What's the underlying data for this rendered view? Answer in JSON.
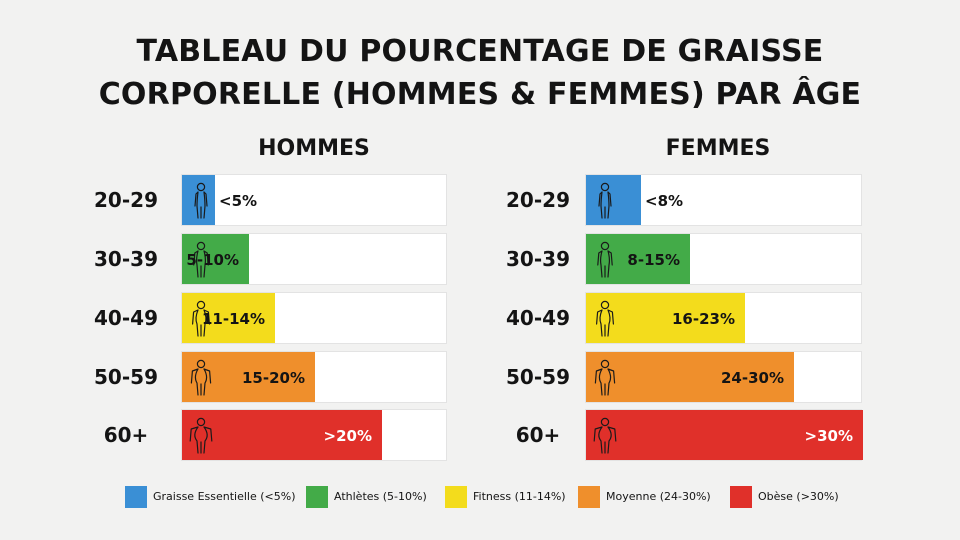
{
  "title_line1": "TABLEAU DU POURCENTAGE DE GRAISSE",
  "title_line2": "CORPORELLE (HOMMES & FEMMES) PAR ÂGE",
  "chart_data": [
    {
      "type": "bar",
      "title": "HOMMES",
      "categories": [
        "20-29",
        "30-39",
        "40-49",
        "50-59",
        "60+"
      ],
      "values": [
        5,
        10,
        14,
        20,
        30
      ],
      "labels": [
        "<5%",
        "5-10%",
        "11-14%",
        "15-20%",
        ">20%"
      ],
      "colors": [
        "#3a8fd5",
        "#43ab48",
        "#f3dc1c",
        "#ef8f2c",
        "#e0302a"
      ]
    },
    {
      "type": "bar",
      "title": "FEMMES",
      "categories": [
        "20-29",
        "30-39",
        "40-49",
        "50-59",
        "60+"
      ],
      "values": [
        8,
        15,
        23,
        30,
        40
      ],
      "labels": [
        "<8%",
        "8-15%",
        "16-23%",
        "24-30%",
        ">30%"
      ],
      "colors": [
        "#3a8fd5",
        "#43ab48",
        "#f3dc1c",
        "#ef8f2c",
        "#e0302a"
      ]
    }
  ],
  "legend": [
    {
      "label": "Graisse Essentielle (<5%)",
      "color": "#3a8fd5"
    },
    {
      "label": "Athlètes (5-10%)",
      "color": "#43ab48"
    },
    {
      "label": "Fitness (11-14%)",
      "color": "#f3dc1c"
    },
    {
      "label": "Moyenne (24-30%)",
      "color": "#ef8f2c"
    },
    {
      "label": "Obèse (>30%)",
      "color": "#e0302a"
    }
  ],
  "icons": {
    "person": "person-silhouette-icon"
  }
}
